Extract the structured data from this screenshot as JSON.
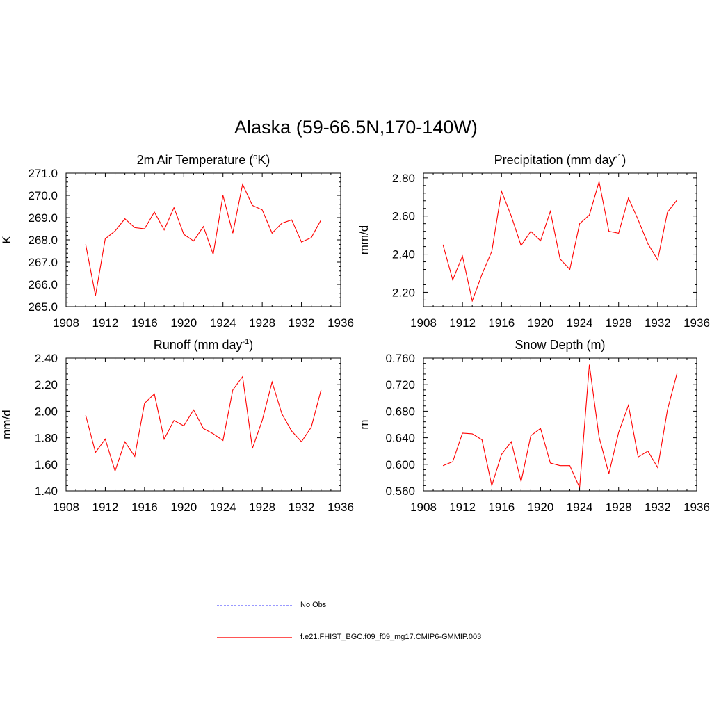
{
  "figure_title": "Alaska (59-66.5N,170-140W)",
  "legend": [
    {
      "label": "No Obs",
      "color": "#9999ff",
      "style": "dashed"
    },
    {
      "label": "f.e21.FHIST_BGC.f09_f09_mg17.CMIP6-GMMIP.003",
      "color": "#ff0000",
      "style": "solid"
    }
  ],
  "chart_data": [
    {
      "type": "line",
      "title_main": "2m Air Temperature (",
      "title_sup": "o",
      "title_tail": "K)",
      "ylabel": "K",
      "xlim": [
        1908,
        1936
      ],
      "ylim": [
        265.0,
        271.0
      ],
      "xticks": [
        1908,
        1912,
        1916,
        1920,
        1924,
        1928,
        1932,
        1936
      ],
      "yticks": [
        "265.0",
        "266.0",
        "267.0",
        "268.0",
        "269.0",
        "270.0",
        "271.0"
      ],
      "series": [
        {
          "color": "#ff0000",
          "x": [
            1910,
            1911,
            1912,
            1913,
            1914,
            1915,
            1916,
            1917,
            1918,
            1919,
            1920,
            1921,
            1922,
            1923,
            1924,
            1925,
            1926,
            1927,
            1928,
            1929,
            1930,
            1931,
            1932,
            1933,
            1934
          ],
          "values": [
            267.8,
            265.5,
            268.05,
            268.4,
            268.95,
            268.55,
            268.5,
            269.25,
            268.45,
            269.45,
            268.25,
            267.95,
            268.6,
            267.35,
            270.0,
            268.3,
            270.5,
            269.55,
            269.35,
            268.3,
            268.75,
            268.9,
            267.9,
            268.1,
            268.9
          ]
        }
      ]
    },
    {
      "type": "line",
      "title_main": "Precipitation (mm day",
      "title_sup": "-1",
      "title_tail": ")",
      "ylabel": "mm/d",
      "xlim": [
        1908,
        1936
      ],
      "ylim": [
        2.125,
        2.825
      ],
      "xticks": [
        1908,
        1912,
        1916,
        1920,
        1924,
        1928,
        1932,
        1936
      ],
      "yticks": [
        "2.20",
        "2.40",
        "2.60",
        "2.80"
      ],
      "series": [
        {
          "color": "#ff0000",
          "x": [
            1910,
            1911,
            1912,
            1913,
            1914,
            1915,
            1916,
            1917,
            1918,
            1919,
            1920,
            1921,
            1922,
            1923,
            1924,
            1925,
            1926,
            1927,
            1928,
            1929,
            1930,
            1931,
            1932,
            1933,
            1934
          ],
          "values": [
            2.45,
            2.265,
            2.39,
            2.155,
            2.295,
            2.415,
            2.73,
            2.6,
            2.445,
            2.52,
            2.47,
            2.625,
            2.375,
            2.32,
            2.56,
            2.605,
            2.78,
            2.52,
            2.51,
            2.695,
            2.58,
            2.455,
            2.37,
            2.62,
            2.685
          ]
        }
      ]
    },
    {
      "type": "line",
      "title_main": "Runoff (mm day",
      "title_sup": "-1",
      "title_tail": ")",
      "ylabel": "mm/d",
      "xlim": [
        1908,
        1936
      ],
      "ylim": [
        1.4,
        2.4
      ],
      "xticks": [
        1908,
        1912,
        1916,
        1920,
        1924,
        1928,
        1932,
        1936
      ],
      "yticks": [
        "1.40",
        "1.60",
        "1.80",
        "2.00",
        "2.20",
        "2.40"
      ],
      "series": [
        {
          "color": "#ff0000",
          "x": [
            1910,
            1911,
            1912,
            1913,
            1914,
            1915,
            1916,
            1917,
            1918,
            1919,
            1920,
            1921,
            1922,
            1923,
            1924,
            1925,
            1926,
            1927,
            1928,
            1929,
            1930,
            1931,
            1932,
            1933,
            1934
          ],
          "values": [
            1.97,
            1.69,
            1.79,
            1.55,
            1.77,
            1.66,
            2.06,
            2.13,
            1.79,
            1.93,
            1.89,
            2.01,
            1.87,
            1.83,
            1.78,
            2.16,
            2.26,
            1.72,
            1.93,
            2.22,
            1.98,
            1.85,
            1.77,
            1.88,
            2.16
          ]
        }
      ]
    },
    {
      "type": "line",
      "title_main": "Snow Depth (m)",
      "title_sup": "",
      "title_tail": "",
      "ylabel": "m",
      "xlim": [
        1908,
        1936
      ],
      "ylim": [
        0.56,
        0.76
      ],
      "xticks": [
        1908,
        1912,
        1916,
        1920,
        1924,
        1928,
        1932,
        1936
      ],
      "yticks": [
        "0.560",
        "0.600",
        "0.640",
        "0.680",
        "0.720",
        "0.760"
      ],
      "series": [
        {
          "color": "#ff0000",
          "x": [
            1910,
            1911,
            1912,
            1913,
            1914,
            1915,
            1916,
            1917,
            1918,
            1919,
            1920,
            1921,
            1922,
            1923,
            1924,
            1925,
            1926,
            1927,
            1928,
            1929,
            1930,
            1931,
            1932,
            1933,
            1934
          ],
          "values": [
            0.598,
            0.604,
            0.647,
            0.646,
            0.637,
            0.568,
            0.615,
            0.634,
            0.574,
            0.643,
            0.654,
            0.602,
            0.598,
            0.598,
            0.565,
            0.75,
            0.641,
            0.586,
            0.648,
            0.689,
            0.611,
            0.62,
            0.595,
            0.682,
            0.738
          ]
        }
      ]
    }
  ]
}
